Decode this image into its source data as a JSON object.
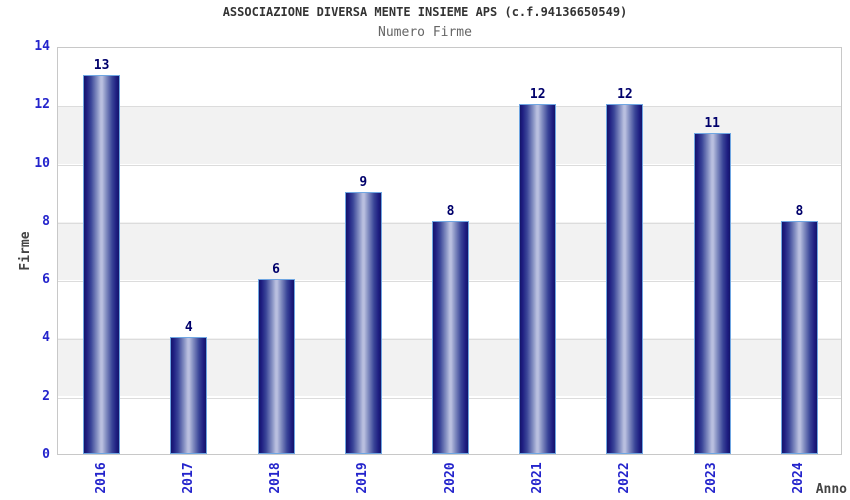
{
  "chart_data": {
    "type": "bar",
    "title": "ASSOCIAZIONE DIVERSA MENTE INSIEME APS (c.f.94136650549)",
    "subtitle": "Numero Firme",
    "categories": [
      "2016",
      "2017",
      "2018",
      "2019",
      "2020",
      "2021",
      "2022",
      "2023",
      "2024"
    ],
    "values": [
      13,
      4,
      6,
      9,
      8,
      12,
      12,
      11,
      8
    ],
    "xlabel": "Anno",
    "ylabel": "Firme",
    "ylim": [
      0,
      14
    ],
    "yticks": [
      0,
      2,
      4,
      6,
      8,
      10,
      12,
      14
    ],
    "grid": "horizontal-bands-alternating",
    "legend_position": "none",
    "colors": {
      "bar_edge": "#14146a",
      "bar_highlight": "#b9bfdf",
      "bar_border": "#6fa6e2",
      "tick_label": "#2424cc",
      "value_label": "#00006b",
      "title": "#333333",
      "subtitle": "#666666",
      "axis_title": "#444444",
      "band_gray": "#f2f2f2",
      "band_white": "#ffffff",
      "plot_border": "#c8c8c8",
      "gridline": "#dcdcdc"
    }
  }
}
